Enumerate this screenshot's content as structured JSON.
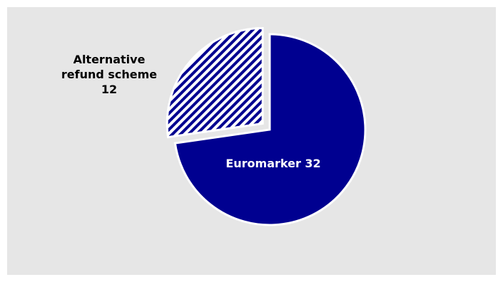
{
  "chart_data": {
    "type": "pie",
    "slices": [
      {
        "label": "Euromarker",
        "value": 32,
        "color": "#000090"
      },
      {
        "label": "Alternative refund scheme",
        "value": 12,
        "color": "#000090",
        "pattern": "diagonal-hatch",
        "exploded": true
      }
    ],
    "labels": {
      "euromarker": "Euromarker 32",
      "alt_line1": "Alternative",
      "alt_line2": "refund scheme",
      "alt_line3": "12"
    },
    "colors": {
      "background": "#e6e6e6",
      "fill": "#000090",
      "label_on_slice": "#ffffff",
      "label_outside": "#000000"
    }
  }
}
